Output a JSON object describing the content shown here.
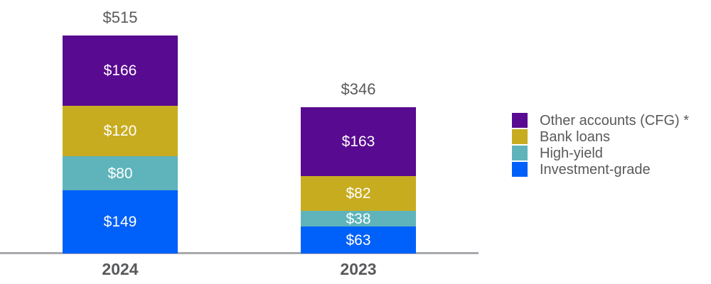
{
  "chart_data": {
    "type": "bar",
    "stacked": true,
    "categories": [
      "2024",
      "2023"
    ],
    "series": [
      {
        "name": "Other accounts (CFG) *",
        "color": "#580a90",
        "values": [
          166,
          163
        ]
      },
      {
        "name": "Bank loans",
        "color": "#c7ac20",
        "values": [
          120,
          82
        ]
      },
      {
        "name": "High-yield",
        "color": "#5eb4ba",
        "values": [
          80,
          38
        ]
      },
      {
        "name": "Investment-grade",
        "color": "#0060fa",
        "values": [
          149,
          63
        ]
      }
    ],
    "totals": [
      515,
      346
    ],
    "total_labels": [
      "$515",
      "$346"
    ],
    "segment_labels": [
      [
        "$166",
        "$120",
        "$80",
        "$149"
      ],
      [
        "$163",
        "$82",
        "$38",
        "$63"
      ]
    ],
    "value_prefix": "$",
    "ylim": [
      0,
      515
    ],
    "legend_position": "right",
    "grid": false
  },
  "colors": {
    "label_gray": "#58595b",
    "axis_gray": "#a7a9ac",
    "segment_text": "#ffffff",
    "background": "#ffffff"
  }
}
